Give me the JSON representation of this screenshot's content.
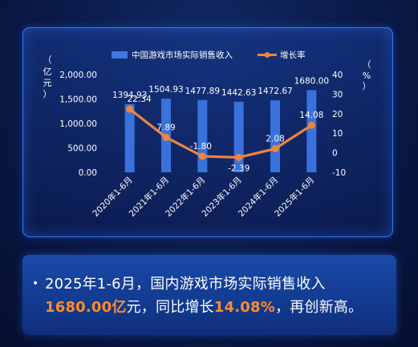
{
  "chart_data": {
    "type": "bar",
    "categories": [
      "2020年1-6月",
      "2021年1-6月",
      "2022年1-6月",
      "2023年1-6月",
      "2024年1-6月",
      "2025年1-6月"
    ],
    "series": [
      {
        "name": "中国游戏市场实际销售收入",
        "type": "bar",
        "axis": "left",
        "values": [
          1394.93,
          1504.93,
          1477.89,
          1442.63,
          1472.67,
          1680.0
        ],
        "labels": [
          "1394.93",
          "1504.93",
          "1477.89",
          "1442.63",
          "1472.67",
          "1680.00"
        ],
        "color": "#3d78e6"
      },
      {
        "name": "增长率",
        "type": "line",
        "axis": "right",
        "values": [
          22.34,
          7.89,
          -1.8,
          -2.39,
          2.08,
          14.08
        ],
        "labels": [
          "22.34",
          "7.89",
          "-1.80",
          "-2.39",
          "2.08",
          "14.08"
        ],
        "color": "#f0843a"
      }
    ],
    "ylabel_left": "亿元",
    "ylabel_left_chars": [
      "（",
      "亿",
      "元",
      "）"
    ],
    "ylabel_right": "%",
    "ylabel_right_chars": [
      "（",
      "%",
      "）"
    ],
    "ylim_left": [
      0,
      2000
    ],
    "yticks_left": [
      0,
      500,
      1000,
      1500,
      2000
    ],
    "ytick_labels_left": [
      "0.00",
      "500.00",
      "1,000.00",
      "1,500.00",
      "2,000.00"
    ],
    "ylim_right": [
      -10,
      40
    ],
    "yticks_right": [
      -10,
      0,
      10,
      20,
      30,
      40
    ],
    "ytick_labels_right": [
      "-10",
      "0",
      "10",
      "20",
      "30",
      "40"
    ],
    "legend_position": "top-center",
    "grid": false
  },
  "summary": {
    "bullet": "•",
    "line1": "2025年1-6月，国内游戏市场实际销售收入",
    "revenue": "1680.00亿",
    "mid": "元，同比增长",
    "growth": "14.08%",
    "tail": "，再创新高。"
  },
  "colors": {
    "bar": "#3d78e6",
    "line": "#f0843a",
    "highlight": "#ff8c2e",
    "panel_border": "#2f78ff"
  }
}
